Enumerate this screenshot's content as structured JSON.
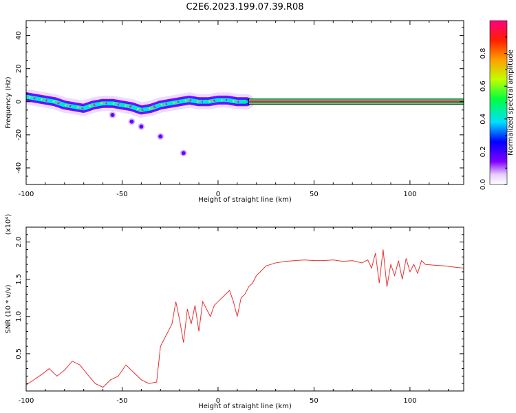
{
  "title": "C2E6.2023.199.07.39.R08",
  "chart_data": [
    {
      "type": "heatmap",
      "xlabel": "Height of straight line (km)",
      "ylabel": "Frequency (Hz)",
      "xlim": [
        -100,
        128
      ],
      "ylim": [
        -50,
        49
      ],
      "xticks": [
        -100,
        -50,
        0,
        50,
        100
      ],
      "yticks": [
        -40,
        -20,
        0,
        20,
        40
      ],
      "colorbar": {
        "label": "Normalized spectral amplitude",
        "range": [
          0.0,
          1.0
        ],
        "ticks": [
          0.0,
          0.2,
          0.4,
          0.6,
          0.8
        ],
        "tick_labels": [
          "0.0",
          "0.2",
          "0.4",
          "0.6",
          "0.8"
        ],
        "colors": [
          "#ffffff",
          "#e8d0ff",
          "#8000ff",
          "#0000ff",
          "#00e0ff",
          "#00ff40",
          "#c0ff00",
          "#ffa000",
          "#ff2000",
          "#ff0080"
        ]
      },
      "ridge": {
        "x": [
          -100,
          -95,
          -90,
          -85,
          -80,
          -75,
          -70,
          -65,
          -60,
          -55,
          -50,
          -45,
          -40,
          -35,
          -30,
          -25,
          -20,
          -15,
          -10,
          -5,
          0,
          5,
          10,
          15
        ],
        "y": [
          3,
          2,
          1,
          0,
          -2,
          -3,
          -4,
          -2,
          -1,
          -1,
          -2,
          -3,
          -5,
          -4,
          -2,
          -1,
          0,
          1,
          0,
          0,
          1,
          1,
          0,
          0
        ]
      },
      "constant_band": {
        "x_start": 16,
        "x_end": 128,
        "y": 0
      },
      "secondary_track": {
        "x": [
          -55,
          -45,
          -40,
          -30,
          -18
        ],
        "y": [
          -8,
          -12,
          -15,
          -21,
          -31
        ]
      }
    },
    {
      "type": "line",
      "xlabel": "Height of straight line (km)",
      "ylabel": "SNR (10 * v/v)",
      "multiplier": "(x10⁴)",
      "xlim": [
        -100,
        128
      ],
      "ylim": [
        0,
        2.2
      ],
      "xticks": [
        -100,
        -50,
        0,
        50,
        100
      ],
      "yticks": [
        0.5,
        1.0,
        1.5,
        2.0
      ],
      "ytick_labels": [
        "0.5",
        "1.0",
        "1.5",
        "2.0"
      ],
      "color": "#e83030",
      "series": [
        {
          "x": [
            -100,
            -96,
            -92,
            -88,
            -84,
            -80,
            -76,
            -72,
            -68,
            -64,
            -60,
            -56,
            -52,
            -48,
            -44,
            -40,
            -36,
            -32,
            -30,
            -28,
            -26,
            -24,
            -22,
            -20,
            -18,
            -16,
            -14,
            -12,
            -10,
            -8,
            -6,
            -4,
            -2,
            0,
            2,
            4,
            6,
            8,
            10,
            12,
            14,
            16,
            18,
            20,
            22,
            25,
            30,
            35,
            40,
            45,
            50,
            55,
            60,
            65,
            70,
            75,
            78,
            80,
            82,
            84,
            86,
            88,
            90,
            92,
            94,
            96,
            98,
            100,
            102,
            104,
            106,
            108,
            112,
            118,
            124,
            128
          ],
          "values": [
            0.08,
            0.15,
            0.22,
            0.3,
            0.2,
            0.28,
            0.4,
            0.35,
            0.22,
            0.1,
            0.05,
            0.15,
            0.2,
            0.35,
            0.25,
            0.15,
            0.1,
            0.12,
            0.6,
            0.7,
            0.8,
            0.9,
            1.2,
            0.95,
            0.65,
            1.1,
            0.9,
            1.15,
            0.8,
            1.2,
            1.1,
            1.0,
            1.15,
            1.2,
            1.25,
            1.3,
            1.35,
            1.2,
            1.0,
            1.25,
            1.3,
            1.4,
            1.45,
            1.55,
            1.6,
            1.68,
            1.72,
            1.74,
            1.75,
            1.76,
            1.75,
            1.75,
            1.76,
            1.74,
            1.75,
            1.72,
            1.76,
            1.65,
            1.85,
            1.45,
            1.9,
            1.4,
            1.7,
            1.55,
            1.75,
            1.5,
            1.78,
            1.6,
            1.7,
            1.58,
            1.75,
            1.7,
            1.69,
            1.68,
            1.66,
            1.65
          ]
        }
      ]
    }
  ]
}
